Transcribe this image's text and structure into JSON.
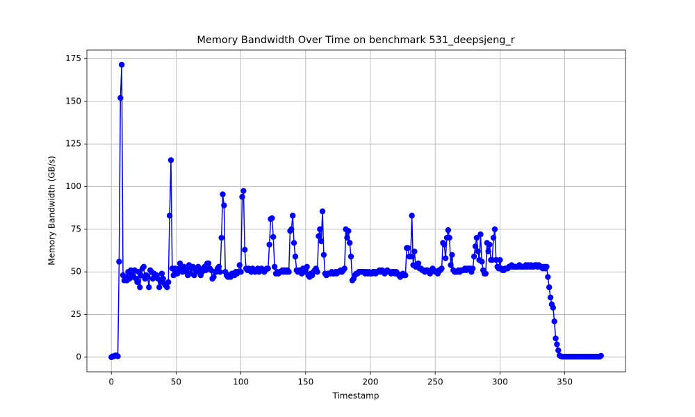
{
  "chart_data": {
    "type": "line",
    "title": "Memory Bandwidth Over Time on benchmark 531_deepsjeng_r",
    "xlabel": "Timestamp",
    "ylabel": "Memory Bandwidth (GB/s)",
    "color": "#0000ff",
    "grid": true,
    "xlim": [
      -18.9,
      396.9
    ],
    "xticks": [
      0,
      50,
      100,
      150,
      200,
      250,
      300,
      350
    ],
    "ylim": [
      -8.6,
      180.1
    ],
    "yticks": [
      0,
      25,
      50,
      75,
      100,
      125,
      150,
      175
    ],
    "x": [
      0,
      1,
      2,
      3,
      4,
      5,
      6,
      7,
      8,
      9,
      10,
      11,
      12,
      13,
      14,
      15,
      16,
      17,
      18,
      19,
      20,
      21,
      22,
      23,
      24,
      25,
      26,
      27,
      28,
      29,
      30,
      31,
      32,
      33,
      34,
      35,
      36,
      37,
      38,
      39,
      40,
      41,
      42,
      43,
      44,
      45,
      46,
      47,
      48,
      49,
      50,
      51,
      52,
      53,
      54,
      55,
      56,
      57,
      58,
      59,
      60,
      61,
      62,
      63,
      64,
      65,
      66,
      67,
      68,
      69,
      70,
      71,
      72,
      73,
      74,
      75,
      76,
      77,
      78,
      79,
      80,
      81,
      82,
      83,
      84,
      85,
      86,
      87,
      88,
      89,
      90,
      91,
      92,
      93,
      94,
      95,
      96,
      97,
      98,
      99,
      100,
      101,
      102,
      103,
      104,
      105,
      106,
      107,
      108,
      109,
      110,
      111,
      112,
      113,
      114,
      115,
      116,
      117,
      118,
      119,
      120,
      121,
      122,
      123,
      124,
      125,
      126,
      127,
      128,
      129,
      130,
      131,
      132,
      133,
      134,
      135,
      136,
      137,
      138,
      139,
      140,
      141,
      142,
      143,
      144,
      145,
      146,
      147,
      148,
      149,
      150,
      151,
      152,
      153,
      154,
      155,
      156,
      157,
      158,
      159,
      160,
      161,
      162,
      163,
      164,
      165,
      166,
      167,
      168,
      169,
      170,
      171,
      172,
      173,
      174,
      175,
      176,
      177,
      178,
      179,
      180,
      181,
      182,
      183,
      184,
      185,
      186,
      187,
      188,
      189,
      190,
      191,
      192,
      193,
      194,
      195,
      196,
      197,
      198,
      199,
      200,
      201,
      202,
      203,
      204,
      205,
      206,
      207,
      208,
      209,
      210,
      211,
      212,
      213,
      214,
      215,
      216,
      217,
      218,
      219,
      220,
      221,
      222,
      223,
      224,
      225,
      226,
      227,
      228,
      229,
      230,
      231,
      232,
      233,
      234,
      235,
      236,
      237,
      238,
      239,
      240,
      241,
      242,
      243,
      244,
      245,
      246,
      247,
      248,
      249,
      250,
      251,
      252,
      253,
      254,
      255,
      256,
      257,
      258,
      259,
      260,
      261,
      262,
      263,
      264,
      265,
      266,
      267,
      268,
      269,
      270,
      271,
      272,
      273,
      274,
      275,
      276,
      277,
      278,
      279,
      280,
      281,
      282,
      283,
      284,
      285,
      286,
      287,
      288,
      289,
      290,
      291,
      292,
      293,
      294,
      295,
      296,
      297,
      298,
      299,
      300,
      301,
      302,
      303,
      304,
      305,
      306,
      307,
      308,
      309,
      310,
      311,
      312,
      313,
      314,
      315,
      316,
      317,
      318,
      319,
      320,
      321,
      322,
      323,
      324,
      325,
      326,
      327,
      328,
      329,
      330,
      331,
      332,
      333,
      334,
      335,
      336,
      337,
      338,
      339,
      340,
      341,
      342,
      343,
      344,
      345,
      346,
      347,
      348,
      349,
      350,
      351,
      352,
      353,
      354,
      355,
      356,
      357,
      358,
      359,
      360,
      361,
      362,
      363,
      364,
      365,
      366,
      367,
      368,
      369,
      370,
      371,
      372,
      373,
      374,
      375,
      376,
      377,
      378
    ],
    "values": [
      0,
      0.5,
      0.5,
      1,
      1,
      0.5,
      56,
      152,
      171.5,
      48,
      45,
      47,
      45,
      50,
      46,
      51,
      48,
      47,
      51,
      46,
      44,
      50,
      41,
      48,
      52,
      53,
      46,
      48,
      47,
      41,
      51,
      50,
      46,
      49,
      47,
      48,
      46,
      41,
      44,
      49,
      46,
      43,
      42,
      41,
      44,
      83,
      115.5,
      52,
      48,
      52,
      50,
      49,
      52,
      55,
      51,
      50,
      53,
      52,
      50,
      48,
      54,
      49,
      52,
      53,
      48,
      51,
      50,
      53,
      51,
      48,
      50,
      52,
      53,
      51,
      55,
      55,
      52,
      51,
      46,
      47,
      50,
      50,
      52,
      53,
      50,
      70,
      95.5,
      89,
      50,
      48,
      47,
      48,
      47,
      49,
      49,
      48,
      50,
      49,
      50,
      54,
      50,
      94,
      97.5,
      63,
      52,
      51,
      52,
      51,
      50,
      52,
      51,
      50,
      51,
      52,
      50,
      51,
      52,
      51,
      50,
      51,
      52,
      52,
      66,
      81,
      81.5,
      70.5,
      53,
      49,
      50,
      49,
      50,
      50,
      51,
      50,
      51,
      50,
      51,
      50,
      74,
      75,
      83,
      67,
      59,
      51,
      50,
      51,
      50,
      49,
      52,
      50,
      51,
      53,
      48,
      47,
      49,
      48,
      50,
      51,
      52,
      50,
      71,
      75,
      68,
      85.5,
      60,
      49,
      48,
      49,
      49,
      49,
      50,
      49,
      49,
      50,
      49,
      50,
      50,
      51,
      50,
      51,
      52,
      75,
      70,
      74,
      67,
      59,
      45,
      46,
      48,
      49,
      49,
      50,
      50,
      50,
      50,
      50,
      49,
      50,
      49,
      50,
      49,
      49,
      50,
      50,
      49,
      50,
      50,
      51,
      50,
      51,
      50,
      49,
      50,
      51,
      50,
      50,
      49,
      50,
      50,
      49,
      50,
      49,
      48,
      47,
      48,
      49,
      48,
      48,
      64,
      64,
      59,
      59,
      83,
      54,
      62,
      53,
      53,
      55,
      52,
      52,
      51,
      51,
      50,
      51,
      51,
      50,
      49,
      51,
      52,
      51,
      50,
      50,
      49,
      51,
      51,
      52,
      67,
      66,
      58,
      70,
      74.5,
      70,
      54,
      60,
      51,
      50,
      50,
      50,
      51,
      50,
      51,
      51,
      51,
      52,
      51,
      52,
      52,
      52,
      50,
      52,
      59,
      65,
      70,
      62,
      57,
      72,
      56,
      51,
      49,
      49,
      67,
      62,
      66,
      57,
      57,
      70,
      75,
      57,
      53,
      52,
      57,
      52,
      51,
      51,
      52,
      52,
      52,
      53,
      53,
      54,
      53,
      53,
      53,
      53,
      53,
      54,
      53,
      53,
      53,
      53,
      54,
      53,
      54,
      53,
      54,
      53,
      53,
      54,
      54,
      53,
      54,
      53,
      53,
      52,
      53,
      52,
      53,
      47,
      41,
      35,
      31,
      29,
      21,
      11,
      7.5,
      4,
      1,
      0.5,
      0.3,
      0.3,
      0.3,
      0.3,
      0.3,
      0.3,
      0.3,
      0.3,
      0.3,
      0.3,
      0.3,
      0.3,
      0.3,
      0.3,
      0.3,
      0.3,
      0.3,
      0.3,
      0.3,
      0.3,
      0.3,
      0.3,
      0.3,
      0.3,
      0.3,
      0.3,
      0.3,
      0.3,
      0.3,
      0.3,
      0.8
    ]
  }
}
